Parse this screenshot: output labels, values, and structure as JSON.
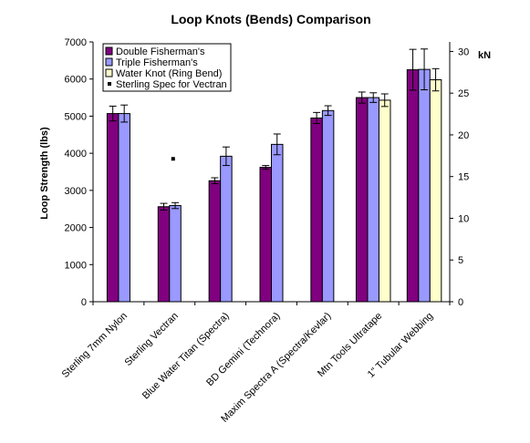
{
  "chart_data": {
    "type": "bar",
    "title": "Loop Knots (Bends) Comparison",
    "ylabel": "Loop Strength (lbs)",
    "y2label": "kN",
    "ylim": [
      0,
      7000
    ],
    "y2lim": [
      0,
      31.14
    ],
    "yticks": [
      0,
      1000,
      2000,
      3000,
      4000,
      5000,
      6000,
      7000
    ],
    "y2ticks": [
      0,
      5,
      10,
      15,
      20,
      25,
      30
    ],
    "categories": [
      "Sterling 7mm Nylon",
      "Sterling Vectran",
      "Blue Water Titan (Spectra)",
      "BD Gemini (Technora)",
      "Maxim Spectra A (Spectra/Kevlar)",
      "Mtn Tools Ultratape",
      "1\" Tubular Webbing"
    ],
    "series": [
      {
        "name": "Double Fisherman's",
        "color": "#800080",
        "values": [
          5070,
          2560,
          3260,
          3620,
          4950,
          5500,
          6250
        ],
        "errors": [
          200,
          90,
          80,
          50,
          150,
          150,
          550
        ]
      },
      {
        "name": "Triple Fisherman's",
        "color": "#9999ff",
        "values": [
          5070,
          2590,
          3920,
          4240,
          5150,
          5500,
          6260
        ],
        "errors": [
          230,
          80,
          250,
          280,
          130,
          130,
          550
        ]
      },
      {
        "name": "Water Knot (Ring Bend)",
        "color": "#ffffcc",
        "values": [
          null,
          null,
          null,
          null,
          null,
          5430,
          5980
        ],
        "errors": [
          null,
          null,
          null,
          null,
          null,
          170,
          300
        ]
      }
    ],
    "markers": [
      {
        "name": "Sterling Spec for Vectran",
        "category": "Sterling Vectran",
        "value": 3850
      }
    ],
    "legend": "top-left",
    "grid": false
  }
}
